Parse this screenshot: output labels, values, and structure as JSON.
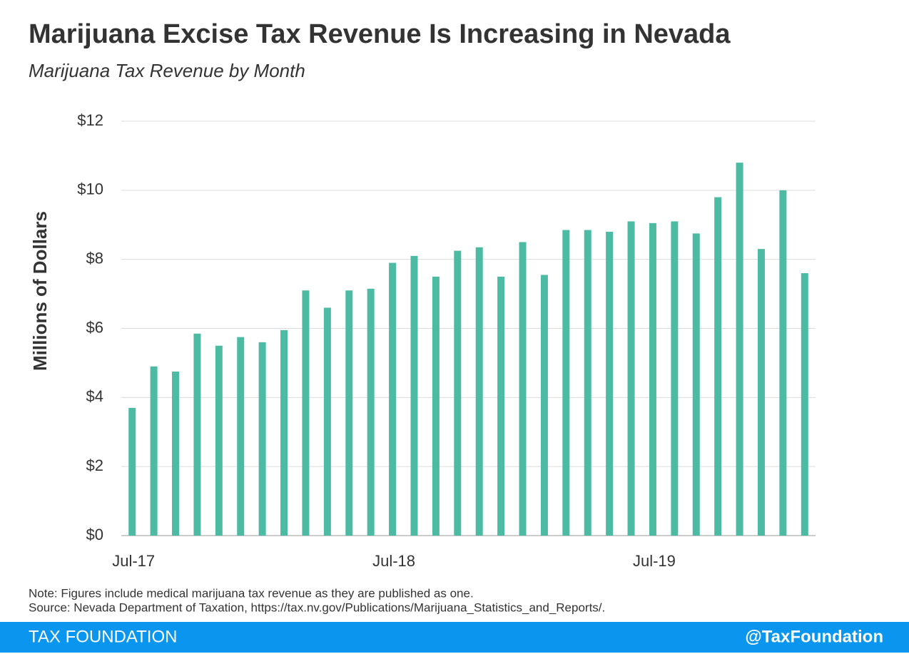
{
  "chart_data": {
    "type": "bar",
    "title": "Marijuana Excise Tax Revenue Is Increasing in Nevada",
    "subtitle": "Marijuana Tax Revenue by Month",
    "y_axis_label": "Millions of Dollars",
    "categories": [
      "Jul-17",
      null,
      null,
      null,
      null,
      null,
      null,
      null,
      null,
      null,
      null,
      null,
      "Jul-18",
      null,
      null,
      null,
      null,
      null,
      null,
      null,
      null,
      null,
      null,
      null,
      "Jul-19",
      null,
      null,
      null,
      null,
      null,
      null,
      null
    ],
    "values": [
      3.7,
      4.9,
      4.75,
      5.85,
      5.5,
      5.75,
      5.6,
      5.95,
      7.1,
      6.6,
      7.1,
      7.15,
      7.9,
      8.1,
      7.5,
      8.25,
      8.35,
      7.5,
      8.5,
      7.55,
      8.85,
      8.85,
      8.8,
      9.1,
      9.05,
      9.1,
      8.75,
      9.8,
      10.8,
      8.3,
      10.0,
      7.6
    ],
    "color": "#4dbba3",
    "ylim": [
      0,
      12
    ],
    "yticks": [
      {
        "value": 0,
        "label": "$0"
      },
      {
        "value": 2,
        "label": "$2"
      },
      {
        "value": 4,
        "label": "$4"
      },
      {
        "value": 6,
        "label": "$6"
      },
      {
        "value": 8,
        "label": "$8"
      },
      {
        "value": 10,
        "label": "$10"
      },
      {
        "value": 12,
        "label": "$12"
      }
    ],
    "grid": true,
    "note": "Note: Figures include medical marijuana tax revenue as they are published as one.",
    "source": "Source: Nevada Department of Taxation, https://tax.nv.gov/Publications/Marijuana_Statistics_and_Reports/."
  },
  "footer": {
    "left": "TAX FOUNDATION",
    "right": "@TaxFoundation"
  }
}
